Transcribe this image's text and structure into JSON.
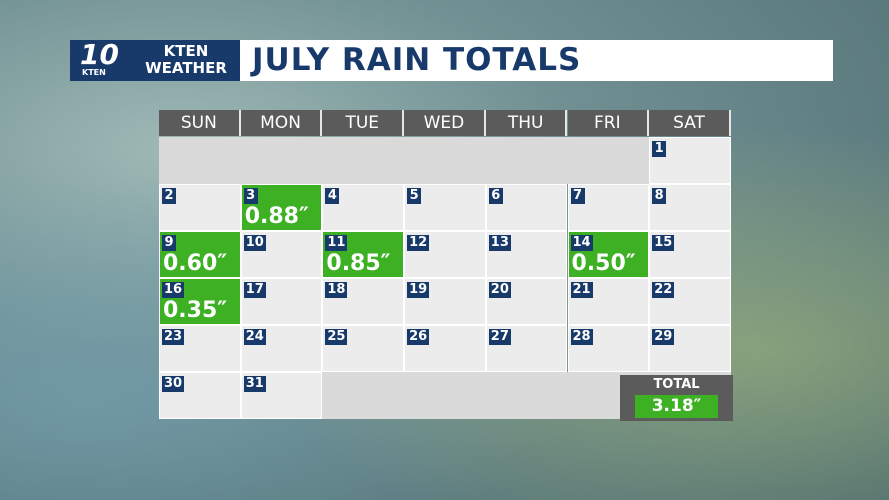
{
  "header": {
    "logo_number": "10",
    "logo_station": "KTEN",
    "brand": [
      "KTEN",
      "WEATHER"
    ],
    "title": "JULY RAIN TOTALS"
  },
  "calendar": {
    "weekdays": [
      "SUN",
      "MON",
      "TUE",
      "WED",
      "THU",
      "FRI",
      "SAT"
    ],
    "days": [
      {
        "day": 1
      },
      {
        "day": 2
      },
      {
        "day": 3,
        "rain": "0.88″"
      },
      {
        "day": 4
      },
      {
        "day": 5
      },
      {
        "day": 6
      },
      {
        "day": 7
      },
      {
        "day": 8
      },
      {
        "day": 9,
        "rain": "0.60″"
      },
      {
        "day": 10
      },
      {
        "day": 11,
        "rain": "0.85″"
      },
      {
        "day": 12
      },
      {
        "day": 13
      },
      {
        "day": 14,
        "rain": "0.50″"
      },
      {
        "day": 15
      },
      {
        "day": 16,
        "rain": "0.35″"
      },
      {
        "day": 17
      },
      {
        "day": 18
      },
      {
        "day": 19
      },
      {
        "day": 20
      },
      {
        "day": 21
      },
      {
        "day": 22
      },
      {
        "day": 23
      },
      {
        "day": 24
      },
      {
        "day": 25
      },
      {
        "day": 26
      },
      {
        "day": 27
      },
      {
        "day": 28
      },
      {
        "day": 29
      },
      {
        "day": 30
      },
      {
        "day": 31
      }
    ]
  },
  "total": {
    "label": "TOTAL",
    "value": "3.18″"
  }
}
